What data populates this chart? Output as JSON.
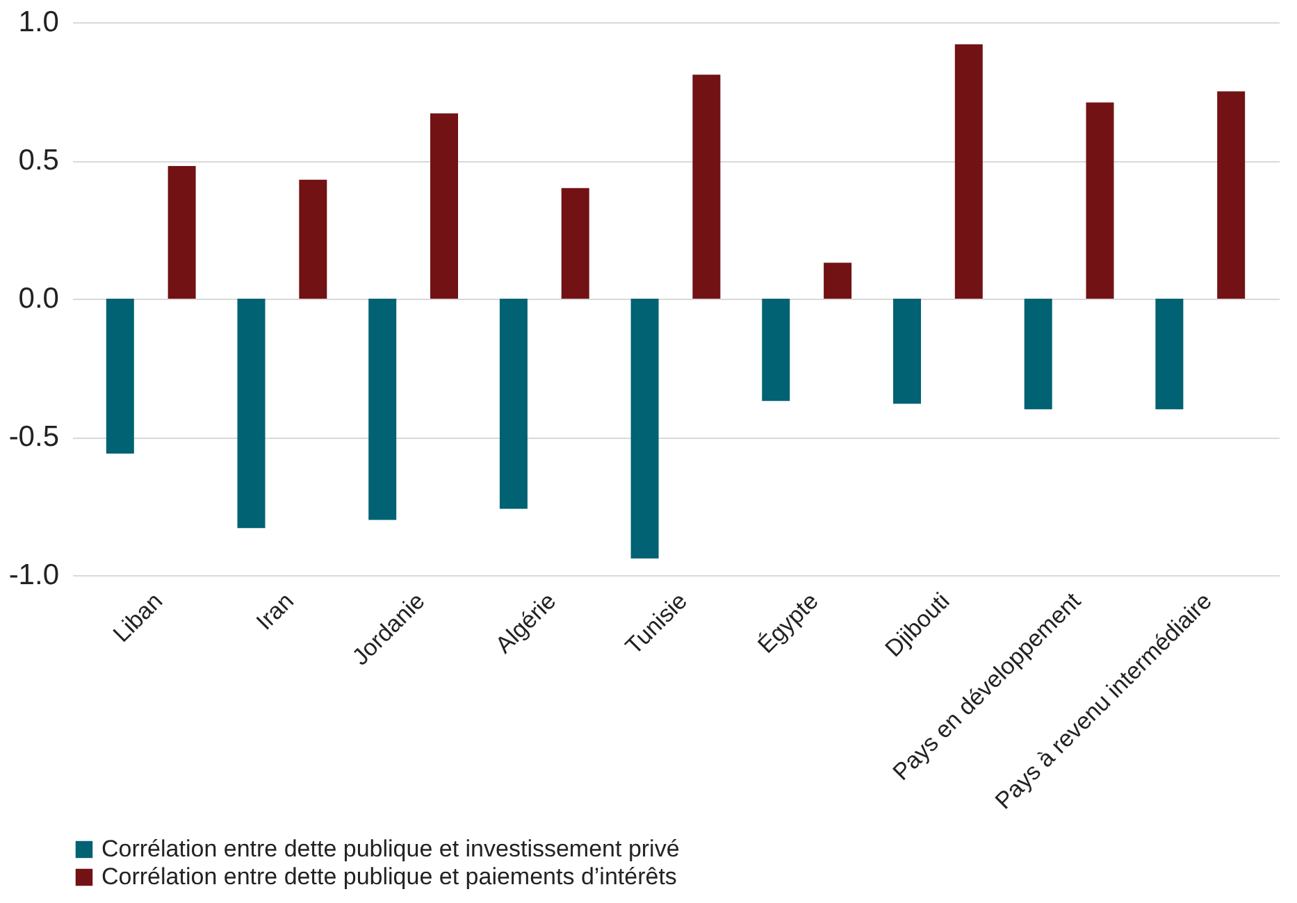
{
  "chart_data": {
    "type": "bar",
    "categories": [
      "Liban",
      "Iran",
      "Jordanie",
      "Algérie",
      "Tunisie",
      "Égypte",
      "Djibouti",
      "Pays en développement",
      "Pays à revenu intermédiaire"
    ],
    "series": [
      {
        "name": "Corrélation entre dette publique et investissement privé",
        "color": "#006272",
        "values": [
          -0.56,
          -0.83,
          -0.8,
          -0.76,
          -0.94,
          -0.37,
          -0.38,
          -0.4,
          -0.4
        ]
      },
      {
        "name": "Corrélation entre dette publique et paiements d’intérêts",
        "color": "#721214",
        "values": [
          0.48,
          0.43,
          0.67,
          0.4,
          0.81,
          0.13,
          0.92,
          0.71,
          0.75
        ]
      }
    ],
    "ylim": [
      -1.0,
      1.0
    ],
    "yticks": [
      {
        "value": -1,
        "label": "-1.0"
      },
      {
        "value": -0.5,
        "label": "-0.5"
      },
      {
        "value": 0,
        "label": "0.0"
      },
      {
        "value": 0.5,
        "label": "0.5"
      },
      {
        "value": 1,
        "label": "1.0"
      }
    ],
    "grid": "y",
    "legend": "bottom"
  }
}
